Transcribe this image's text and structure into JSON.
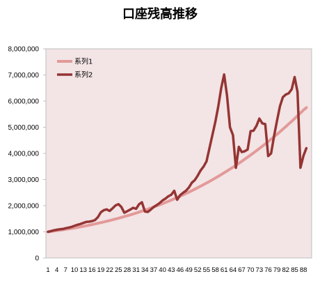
{
  "chart_data": {
    "type": "line",
    "title": "口座残高推移",
    "xlabel": "",
    "ylabel": "",
    "x": [
      1,
      2,
      3,
      4,
      5,
      6,
      7,
      8,
      9,
      10,
      11,
      12,
      13,
      14,
      15,
      16,
      17,
      18,
      19,
      20,
      21,
      22,
      23,
      24,
      25,
      26,
      27,
      28,
      29,
      30,
      31,
      32,
      33,
      34,
      35,
      36,
      37,
      38,
      39,
      40,
      41,
      42,
      43,
      44,
      45,
      46,
      47,
      48,
      49,
      50,
      51,
      52,
      53,
      54,
      55,
      56,
      57,
      58,
      59,
      60,
      61,
      62,
      63,
      64,
      65,
      66,
      67,
      68,
      69,
      70,
      71,
      72,
      73,
      74,
      75,
      76,
      77,
      78,
      79,
      80,
      81,
      82,
      83,
      84,
      85,
      86,
      87,
      88,
      89
    ],
    "xtick_labels": [
      "1",
      "4",
      "7",
      "10",
      "13",
      "16",
      "19",
      "22",
      "25",
      "28",
      "31",
      "34",
      "37",
      "40",
      "43",
      "46",
      "49",
      "52",
      "55",
      "58",
      "61",
      "64",
      "67",
      "70",
      "73",
      "76",
      "79",
      "82",
      "85",
      "88"
    ],
    "ylim": [
      0,
      8000000
    ],
    "ytick_labels": [
      "0",
      "1,000,000",
      "2,000,000",
      "3,000,000",
      "4,000,000",
      "5,000,000",
      "6,000,000",
      "7,000,000",
      "8,000,000"
    ],
    "legend_position": "top-left",
    "grid": false,
    "series": [
      {
        "name": "系列1",
        "color": "#e29a99",
        "values": [
          1000000,
          1015000,
          1030000,
          1046000,
          1062000,
          1078000,
          1095000,
          1113000,
          1131000,
          1150000,
          1170000,
          1190000,
          1211000,
          1233000,
          1255000,
          1278000,
          1302000,
          1327000,
          1352000,
          1378000,
          1405000,
          1433000,
          1461000,
          1490000,
          1520000,
          1551000,
          1583000,
          1616000,
          1649000,
          1683000,
          1718000,
          1754000,
          1791000,
          1829000,
          1868000,
          1908000,
          1949000,
          1991000,
          2034000,
          2078000,
          2123000,
          2169000,
          2216000,
          2264000,
          2313000,
          2363000,
          2414000,
          2466000,
          2520000,
          2575000,
          2631000,
          2688000,
          2746000,
          2806000,
          2867000,
          2929000,
          2992000,
          3057000,
          3123000,
          3190000,
          3258000,
          3328000,
          3399000,
          3471000,
          3545000,
          3620000,
          3697000,
          3775000,
          3855000,
          3936000,
          4018000,
          4102000,
          4187000,
          4274000,
          4362000,
          4452000,
          4544000,
          4637000,
          4731000,
          4827000,
          4925000,
          5024000,
          5125000,
          5227000,
          5331000,
          5437000,
          5545000,
          5655000,
          5750000
        ]
      },
      {
        "name": "系列2",
        "color": "#943534",
        "values": [
          1000000,
          1030000,
          1060000,
          1080000,
          1100000,
          1110000,
          1140000,
          1160000,
          1190000,
          1230000,
          1270000,
          1300000,
          1340000,
          1380000,
          1390000,
          1410000,
          1450000,
          1560000,
          1750000,
          1830000,
          1860000,
          1800000,
          1900000,
          2010000,
          2060000,
          1950000,
          1730000,
          1790000,
          1850000,
          1920000,
          1880000,
          2050000,
          2130000,
          1780000,
          1760000,
          1850000,
          1950000,
          2020000,
          2100000,
          2200000,
          2270000,
          2360000,
          2420000,
          2570000,
          2230000,
          2400000,
          2490000,
          2570000,
          2700000,
          2880000,
          2980000,
          3150000,
          3350000,
          3500000,
          3700000,
          4200000,
          4700000,
          5200000,
          5800000,
          6500000,
          7020000,
          6200000,
          5000000,
          4700000,
          3450000,
          4250000,
          4050000,
          4080000,
          4150000,
          4850000,
          4870000,
          5050000,
          5330000,
          5150000,
          5120000,
          3900000,
          4000000,
          4650000,
          5250000,
          5800000,
          6150000,
          6250000,
          6300000,
          6450000,
          6920000,
          6350000,
          3450000,
          3900000,
          4200000
        ]
      }
    ]
  }
}
